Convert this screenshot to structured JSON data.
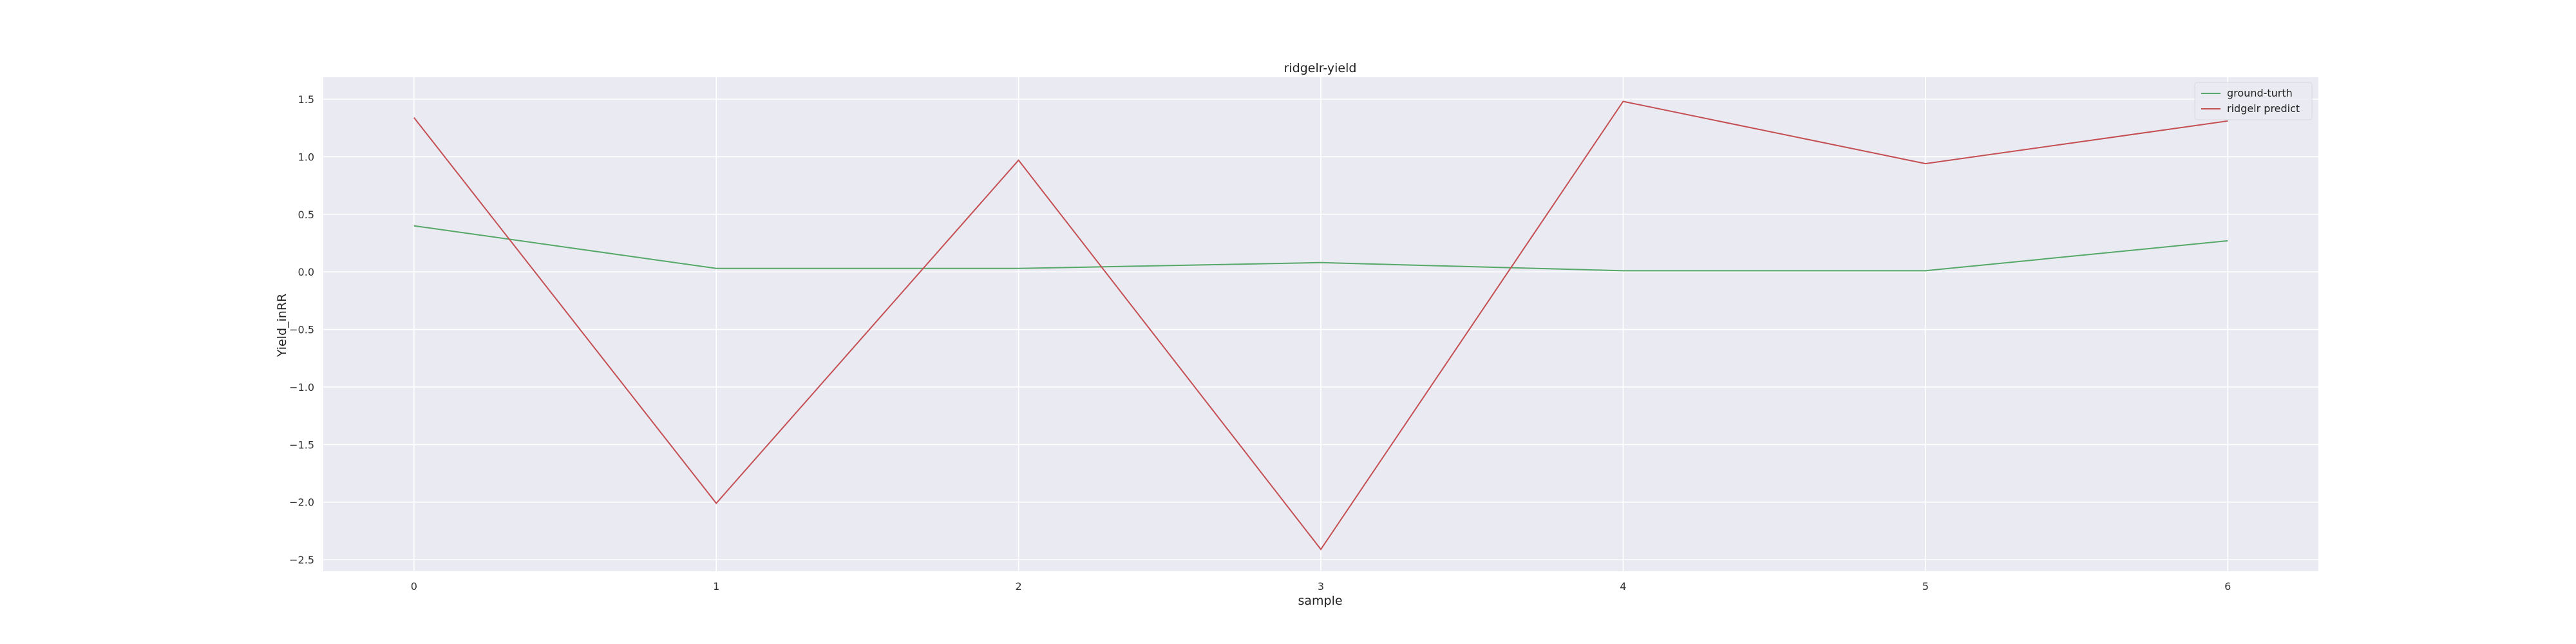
{
  "chart_data": {
    "type": "line",
    "title": "ridgelr-yield",
    "xlabel": "sample",
    "ylabel": "Yield_inRR",
    "x": [
      0,
      1,
      2,
      3,
      4,
      5,
      6
    ],
    "xlim": [
      -0.3,
      6.3
    ],
    "ylim": [
      -2.6,
      1.69
    ],
    "xticks": [
      0,
      1,
      2,
      3,
      4,
      5,
      6
    ],
    "yticks": [
      -2.5,
      -2.0,
      -1.5,
      -1.0,
      -0.5,
      0.0,
      0.5,
      1.0,
      1.5
    ],
    "grid": true,
    "legend_position": "top-right",
    "background": "#eaeaf2",
    "series": [
      {
        "name": "ground-turth",
        "color": "#55a868",
        "values": [
          0.4,
          0.03,
          0.03,
          0.08,
          0.01,
          0.01,
          0.27
        ]
      },
      {
        "name": "ridgelr predict",
        "color": "#c44e52",
        "values": [
          1.34,
          -2.01,
          0.97,
          -2.41,
          1.48,
          0.94,
          1.31
        ]
      }
    ]
  }
}
